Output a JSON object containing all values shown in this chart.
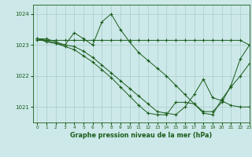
{
  "title": "Graphe pression niveau de la mer (hPa)",
  "bg_color": "#cce8e8",
  "grid_color": "#aacccc",
  "line_color": "#1a5c1a",
  "marker": "+",
  "xlim": [
    -0.5,
    23
  ],
  "ylim": [
    1020.5,
    1024.3
  ],
  "yticks": [
    1021,
    1022,
    1023,
    1024
  ],
  "xticks": [
    0,
    1,
    2,
    3,
    4,
    5,
    6,
    7,
    8,
    9,
    10,
    11,
    12,
    13,
    14,
    15,
    16,
    17,
    18,
    19,
    20,
    21,
    22,
    23
  ],
  "series": [
    {
      "x": [
        0,
        1,
        2,
        3,
        4,
        5,
        6,
        7,
        8,
        9,
        10,
        11,
        12,
        13,
        14,
        15,
        16,
        17,
        18,
        19,
        20,
        21,
        22,
        23
      ],
      "y": [
        1023.15,
        1023.15,
        1023.15,
        1023.15,
        1023.15,
        1023.15,
        1023.15,
        1023.15,
        1023.15,
        1023.15,
        1023.15,
        1023.15,
        1023.15,
        1023.15,
        1023.15,
        1023.15,
        1023.15,
        1023.15,
        1023.15,
        1023.15,
        1023.15,
        1023.15,
        1023.15,
        1023.0
      ]
    },
    {
      "x": [
        0,
        1,
        2,
        3,
        4,
        5,
        6,
        7,
        8,
        9,
        10,
        11,
        12,
        13,
        14,
        15,
        16,
        17,
        18,
        19,
        20,
        21,
        22,
        23
      ],
      "y": [
        1023.2,
        1023.2,
        1023.1,
        1023.0,
        1023.4,
        1023.2,
        1023.0,
        1023.75,
        1024.0,
        1023.5,
        1023.1,
        1022.75,
        1022.5,
        1022.25,
        1022.0,
        1021.7,
        1021.4,
        1021.1,
        1020.85,
        1020.85,
        1021.15,
        1021.7,
        1022.55,
        1023.0
      ]
    },
    {
      "x": [
        0,
        1,
        2,
        3,
        4,
        5,
        6,
        7,
        8,
        9,
        10,
        11,
        12,
        13,
        14,
        15,
        16,
        17,
        18,
        19,
        20,
        21,
        22,
        23
      ],
      "y": [
        1023.2,
        1023.15,
        1023.05,
        1023.0,
        1022.95,
        1022.8,
        1022.6,
        1022.35,
        1022.1,
        1021.85,
        1021.6,
        1021.35,
        1021.1,
        1020.85,
        1020.8,
        1020.75,
        1021.0,
        1021.4,
        1021.9,
        1021.3,
        1021.2,
        1021.05,
        1021.0,
        1021.0
      ]
    },
    {
      "x": [
        0,
        1,
        2,
        3,
        4,
        5,
        6,
        7,
        8,
        9,
        10,
        11,
        12,
        13,
        14,
        15,
        16,
        17,
        18,
        19,
        20,
        21,
        22,
        23
      ],
      "y": [
        1023.2,
        1023.1,
        1023.05,
        1022.95,
        1022.85,
        1022.65,
        1022.45,
        1022.2,
        1021.95,
        1021.65,
        1021.35,
        1021.05,
        1020.8,
        1020.75,
        1020.75,
        1021.15,
        1021.15,
        1021.1,
        1020.8,
        1020.75,
        1021.25,
        1021.65,
        1022.0,
        1022.4
      ]
    }
  ]
}
